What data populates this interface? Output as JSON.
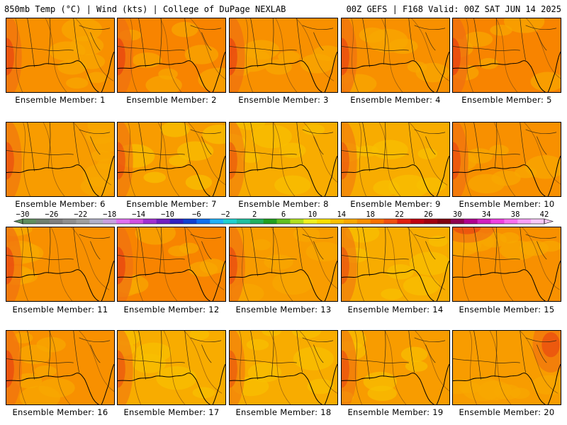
{
  "header": {
    "left": "850mb Temp (°C) | Wind (kts) | College of DuPage NEXLAB",
    "right": "00Z GEFS | F168 Valid: 00Z SAT JUN 14 2025"
  },
  "members": [
    {
      "label": "Ensemble Member: 1",
      "tone": 0.35,
      "hot_side": "left"
    },
    {
      "label": "Ensemble Member: 2",
      "tone": 0.45,
      "hot_side": "left"
    },
    {
      "label": "Ensemble Member: 3",
      "tone": 0.4,
      "hot_side": "left"
    },
    {
      "label": "Ensemble Member: 4",
      "tone": 0.3,
      "hot_side": "left"
    },
    {
      "label": "Ensemble Member: 5",
      "tone": 0.55,
      "hot_side": "left"
    },
    {
      "label": "Ensemble Member: 6",
      "tone": 0.15,
      "hot_side": "left"
    },
    {
      "label": "Ensemble Member: 7",
      "tone": 0.1,
      "hot_side": "left"
    },
    {
      "label": "Ensemble Member: 8",
      "tone": -0.1,
      "hot_side": "left"
    },
    {
      "label": "Ensemble Member: 9",
      "tone": -0.05,
      "hot_side": "left"
    },
    {
      "label": "Ensemble Member: 10",
      "tone": 0.3,
      "hot_side": "left"
    },
    {
      "label": "Ensemble Member: 11",
      "tone": 0.35,
      "hot_side": "left"
    },
    {
      "label": "Ensemble Member: 12",
      "tone": 0.45,
      "hot_side": "left"
    },
    {
      "label": "Ensemble Member: 13",
      "tone": 0.25,
      "hot_side": "left"
    },
    {
      "label": "Ensemble Member: 14",
      "tone": 0.05,
      "hot_side": "left"
    },
    {
      "label": "Ensemble Member: 15",
      "tone": 0.3,
      "hot_side": "top"
    },
    {
      "label": "Ensemble Member: 16",
      "tone": 0.35,
      "hot_side": "left"
    },
    {
      "label": "Ensemble Member: 17",
      "tone": 0.0,
      "hot_side": "left"
    },
    {
      "label": "Ensemble Member: 18",
      "tone": -0.05,
      "hot_side": "left"
    },
    {
      "label": "Ensemble Member: 19",
      "tone": 0.1,
      "hot_side": "left"
    },
    {
      "label": "Ensemble Member: 20",
      "tone": 0.25,
      "hot_side": "right"
    }
  ],
  "colorbar": {
    "ticks": [
      "-30",
      "-26",
      "-22",
      "-18",
      "-14",
      "-10",
      "-6",
      "-2",
      "2",
      "6",
      "10",
      "14",
      "18",
      "22",
      "26",
      "30",
      "34",
      "38",
      "42"
    ],
    "colors": [
      "#5f8f5f",
      "#6f7f6f",
      "#7f7f7f",
      "#8f8f8f",
      "#9f9f9f",
      "#b0b0c8",
      "#c8a0e0",
      "#e070f0",
      "#d050e0",
      "#a030d0",
      "#7020c0",
      "#3020c0",
      "#1040d0",
      "#1070f0",
      "#20b0f8",
      "#20d0d0",
      "#20c0a0",
      "#20b060",
      "#20a020",
      "#60c020",
      "#b0e020",
      "#f0f020",
      "#f8e000",
      "#f8c000",
      "#f8a800",
      "#f89000",
      "#f87000",
      "#f05010",
      "#e02010",
      "#c00010",
      "#a00010",
      "#800010",
      "#900050",
      "#b00090",
      "#d020c0",
      "#f040e0",
      "#f870f0",
      "#f8a0f8",
      "#f8c8f8"
    ]
  }
}
